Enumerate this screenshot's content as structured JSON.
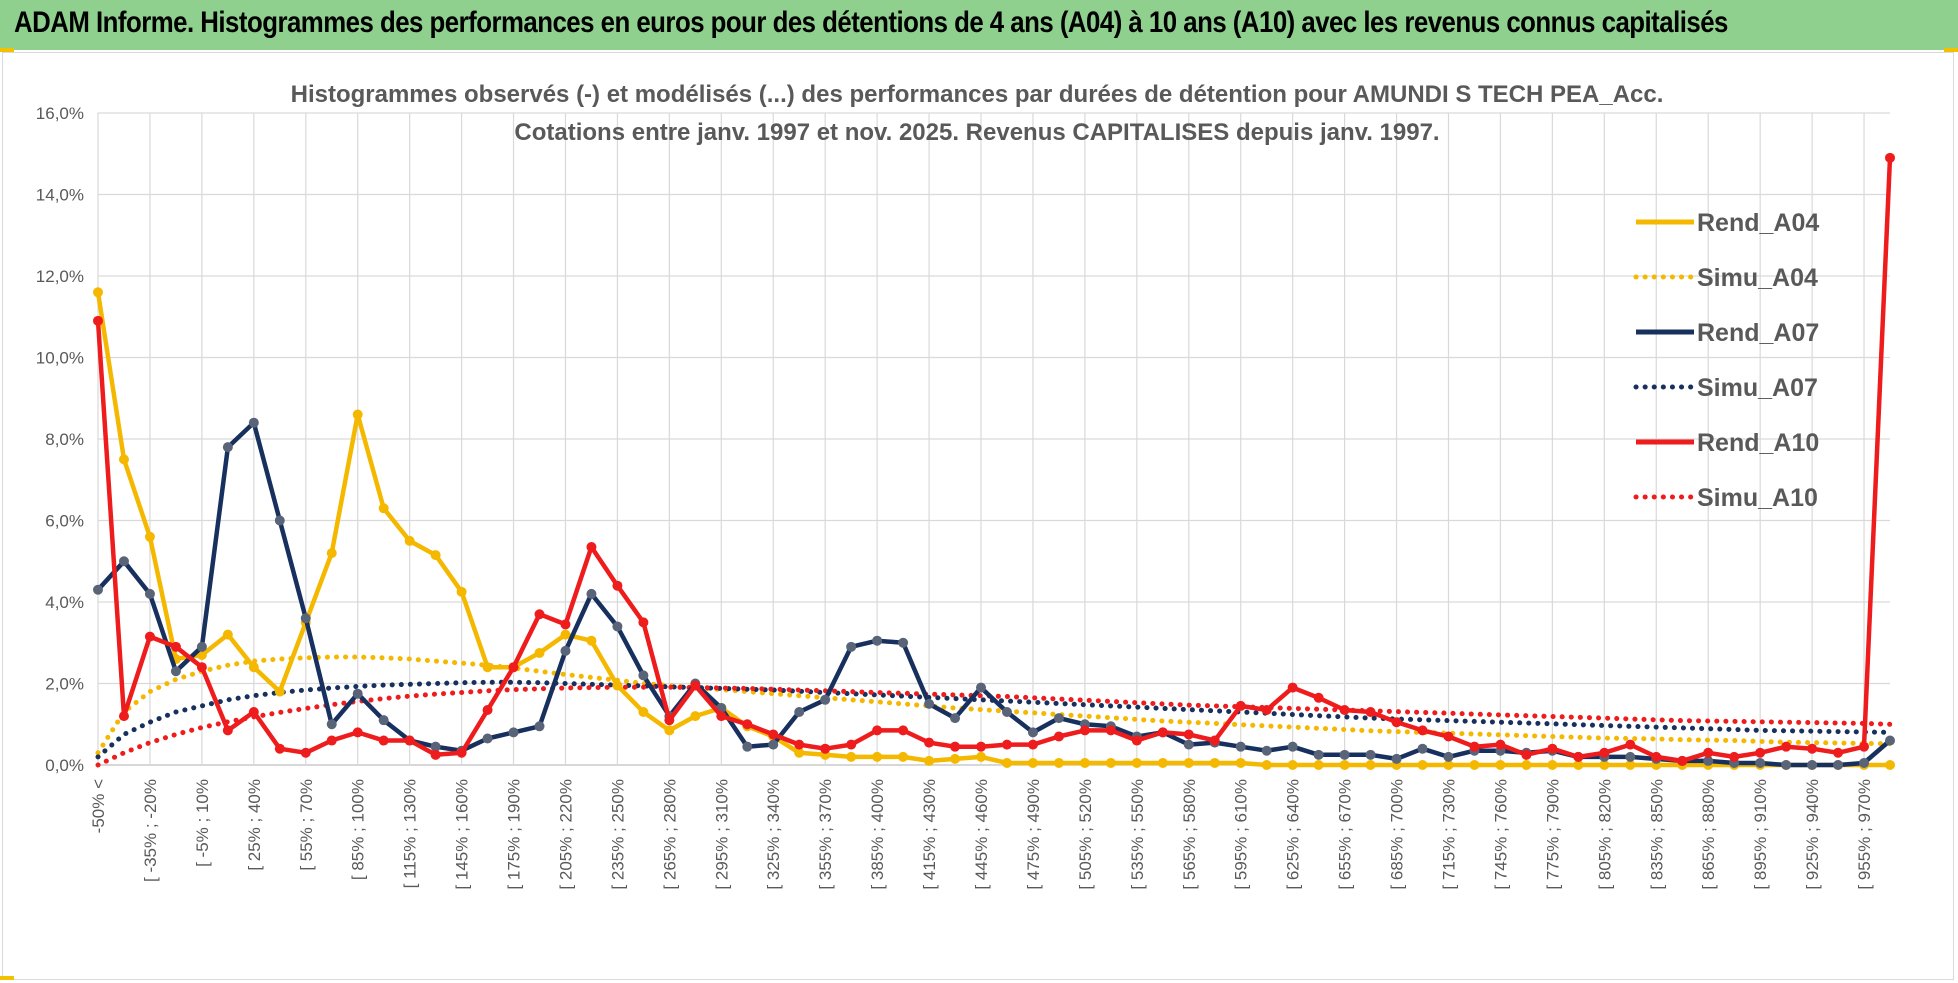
{
  "banner": {
    "title": "ADAM Informe. Histogrammes des performances en euros pour des détentions de 4 ans (A04) à 10 ans (A10) avec les revenus connus capitalisés"
  },
  "chart_data": {
    "type": "line",
    "title": [
      "Histogrammes observés (-) et modélisés (...) des performances par durées de détention pour AMUNDI S TECH PEA_Acc.",
      "Cotations entre janv. 1997 et nov. 2025. Revenus CAPITALISES depuis janv. 1997."
    ],
    "xlabel": "",
    "ylabel": "",
    "ylim": [
      0,
      16
    ],
    "y_ticks": [
      "0,0%",
      "2,0%",
      "4,0%",
      "6,0%",
      "8,0%",
      "10,0%",
      "12,0%",
      "14,0%",
      "16,0%"
    ],
    "x_tick_labels": [
      "-50% <",
      "[ -35% ; -20%",
      "[ -5% ; 10%",
      "[ 25% ; 40%",
      "[ 55% ; 70%",
      "[ 85% ; 100%",
      "[ 115% ; 130%",
      "[ 145% ; 160%",
      "[ 175% ; 190%",
      "[ 205% ; 220%",
      "[ 235% ; 250%",
      "[ 265% ; 280%",
      "[ 295% ; 310%",
      "[ 325% ; 340%",
      "[ 355% ; 370%",
      "[ 385% ; 400%",
      "[ 415% ; 430%",
      "[ 445% ; 460%",
      "[ 475% ; 490%",
      "[ 505% ; 520%",
      "[ 535% ; 550%",
      "[ 565% ; 580%",
      "[ 595% ; 610%",
      "[ 625% ; 640%",
      "[ 655% ; 670%",
      "[ 685% ; 700%",
      "[ 715% ; 730%",
      "[ 745% ; 760%",
      "[ 775% ; 790%",
      "[ 805% ; 820%",
      "[ 835% ; 850%",
      "[ 865% ; 880%",
      "[ 895% ; 910%",
      "[ 925% ; 940%",
      "[ 955% ; 970%"
    ],
    "n_categories": 70,
    "series": [
      {
        "name": "Rend_A04",
        "style": "solid",
        "color": "#f5b800",
        "values": [
          11.6,
          7.5,
          5.6,
          2.6,
          2.7,
          3.2,
          2.4,
          1.8,
          3.5,
          5.2,
          8.6,
          6.3,
          5.5,
          5.15,
          4.25,
          2.4,
          2.4,
          2.75,
          3.2,
          3.05,
          1.95,
          1.3,
          0.85,
          1.2,
          1.4,
          0.95,
          0.7,
          0.3,
          0.25,
          0.2,
          0.2,
          0.2,
          0.1,
          0.15,
          0.2,
          0.05,
          0.05,
          0.05,
          0.05,
          0.05,
          0.05,
          0.05,
          0.05,
          0.05,
          0.05,
          0.0,
          0.0,
          0.0,
          0.0,
          0.0,
          0.0,
          0.0,
          0.0,
          0.0,
          0.0,
          0.0,
          0.0,
          0.0,
          0.0,
          0.0,
          0.0,
          0.0,
          0.0,
          0.0,
          0.0,
          0.0,
          0.0,
          0.0,
          0.0,
          0.0
        ]
      },
      {
        "name": "Simu_A04",
        "style": "dotted",
        "color": "#f5b800",
        "values": [
          0.3,
          1.3,
          1.8,
          2.1,
          2.3,
          2.45,
          2.55,
          2.6,
          2.63,
          2.65,
          2.65,
          2.63,
          2.6,
          2.55,
          2.5,
          2.45,
          2.38,
          2.3,
          2.22,
          2.15,
          2.08,
          2.0,
          1.95,
          1.9,
          1.85,
          1.8,
          1.75,
          1.7,
          1.65,
          1.6,
          1.55,
          1.5,
          1.45,
          1.4,
          1.36,
          1.32,
          1.28,
          1.24,
          1.2,
          1.16,
          1.12,
          1.08,
          1.05,
          1.02,
          0.99,
          0.96,
          0.93,
          0.9,
          0.87,
          0.84,
          0.82,
          0.8,
          0.78,
          0.76,
          0.74,
          0.72,
          0.7,
          0.68,
          0.66,
          0.65,
          0.64,
          0.62,
          0.61,
          0.6,
          0.58,
          0.56,
          0.55,
          0.54,
          0.53,
          0.52
        ]
      },
      {
        "name": "Rend_A07",
        "style": "solid",
        "color": "#17305e",
        "values": [
          4.3,
          5.0,
          4.2,
          2.3,
          2.9,
          7.8,
          8.4,
          6.0,
          3.6,
          1.0,
          1.75,
          1.1,
          0.6,
          0.45,
          0.35,
          0.65,
          0.8,
          0.95,
          2.8,
          4.2,
          3.4,
          2.2,
          1.2,
          2.0,
          1.4,
          0.45,
          0.5,
          1.3,
          1.6,
          2.9,
          3.05,
          3.0,
          1.5,
          1.15,
          1.9,
          1.3,
          0.8,
          1.15,
          1.0,
          0.95,
          0.7,
          0.8,
          0.5,
          0.55,
          0.45,
          0.35,
          0.45,
          0.25,
          0.25,
          0.25,
          0.15,
          0.4,
          0.2,
          0.35,
          0.35,
          0.3,
          0.35,
          0.2,
          0.2,
          0.2,
          0.15,
          0.1,
          0.1,
          0.05,
          0.05,
          0.0,
          0.0,
          0.0,
          0.05,
          0.6
        ]
      },
      {
        "name": "Simu_A07",
        "style": "dotted",
        "color": "#17305e",
        "values": [
          0.2,
          0.75,
          1.05,
          1.3,
          1.45,
          1.6,
          1.7,
          1.78,
          1.84,
          1.89,
          1.93,
          1.96,
          1.98,
          2.0,
          2.02,
          2.03,
          2.03,
          2.02,
          2.0,
          1.98,
          1.96,
          1.94,
          1.92,
          1.9,
          1.88,
          1.86,
          1.84,
          1.81,
          1.78,
          1.75,
          1.72,
          1.69,
          1.66,
          1.63,
          1.6,
          1.57,
          1.54,
          1.51,
          1.48,
          1.45,
          1.42,
          1.39,
          1.36,
          1.33,
          1.3,
          1.27,
          1.24,
          1.21,
          1.18,
          1.15,
          1.13,
          1.11,
          1.09,
          1.07,
          1.05,
          1.03,
          1.01,
          0.99,
          0.97,
          0.95,
          0.93,
          0.91,
          0.89,
          0.87,
          0.85,
          0.84,
          0.83,
          0.82,
          0.81,
          0.8
        ]
      },
      {
        "name": "Rend_A10",
        "style": "solid",
        "color": "#ee1c1c",
        "values": [
          10.9,
          1.2,
          3.15,
          2.9,
          2.4,
          0.85,
          1.3,
          0.4,
          0.3,
          0.6,
          0.8,
          0.6,
          0.6,
          0.25,
          0.3,
          1.35,
          2.4,
          3.7,
          3.45,
          5.35,
          4.4,
          3.5,
          1.1,
          1.95,
          1.2,
          1.0,
          0.75,
          0.5,
          0.4,
          0.5,
          0.85,
          0.85,
          0.55,
          0.45,
          0.45,
          0.5,
          0.5,
          0.7,
          0.85,
          0.85,
          0.6,
          0.8,
          0.75,
          0.6,
          1.45,
          1.35,
          1.9,
          1.65,
          1.35,
          1.3,
          1.05,
          0.85,
          0.7,
          0.45,
          0.5,
          0.25,
          0.4,
          0.2,
          0.3,
          0.5,
          0.2,
          0.1,
          0.3,
          0.2,
          0.3,
          0.45,
          0.4,
          0.3,
          0.45,
          14.9
        ]
      },
      {
        "name": "Simu_A10",
        "style": "dotted",
        "color": "#ee1c1c",
        "values": [
          0.0,
          0.3,
          0.55,
          0.75,
          0.92,
          1.06,
          1.18,
          1.29,
          1.39,
          1.48,
          1.56,
          1.63,
          1.69,
          1.74,
          1.78,
          1.82,
          1.85,
          1.87,
          1.89,
          1.9,
          1.91,
          1.91,
          1.91,
          1.9,
          1.89,
          1.88,
          1.86,
          1.84,
          1.82,
          1.8,
          1.78,
          1.76,
          1.74,
          1.72,
          1.7,
          1.68,
          1.65,
          1.62,
          1.59,
          1.56,
          1.53,
          1.5,
          1.47,
          1.45,
          1.43,
          1.41,
          1.39,
          1.37,
          1.35,
          1.33,
          1.31,
          1.29,
          1.27,
          1.25,
          1.23,
          1.21,
          1.19,
          1.17,
          1.15,
          1.13,
          1.11,
          1.09,
          1.08,
          1.07,
          1.06,
          1.05,
          1.04,
          1.03,
          1.02,
          1.0
        ]
      }
    ],
    "legend_position": "right"
  }
}
